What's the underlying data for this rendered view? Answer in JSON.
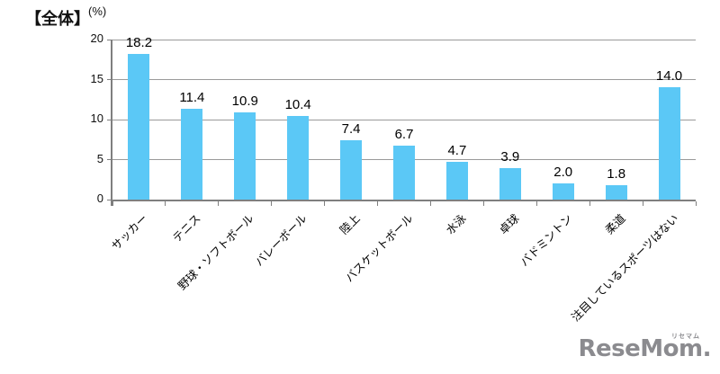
{
  "chart_data": {
    "type": "bar",
    "title": "【全体】",
    "unit_label": "(%)",
    "categories": [
      "サッカー",
      "テニス",
      "野球・ソフトボール",
      "バレーボール",
      "陸上",
      "バスケットボール",
      "水泳",
      "卓球",
      "バドミントン",
      "柔道",
      "注目しているスポーツはない"
    ],
    "values": [
      18.2,
      11.4,
      10.9,
      10.4,
      7.4,
      6.7,
      4.7,
      3.9,
      2.0,
      1.8,
      14.0
    ],
    "value_labels": [
      "18.2",
      "11.4",
      "10.9",
      "10.4",
      "7.4",
      "6.7",
      "4.7",
      "3.9",
      "2.0",
      "1.8",
      "14.0"
    ],
    "ylim": [
      0,
      20
    ],
    "yticks": [
      0,
      5,
      10,
      15,
      20
    ],
    "grid": true,
    "legend_position": "none",
    "bar_color": "#5BC8F6",
    "gridline_color": "#9A9A9A",
    "axis_color": "#7F7F7F"
  },
  "watermark": {
    "text": "ReseMom",
    "period": ".",
    "ruby": "リセマム",
    "color": "#8B8B8F"
  }
}
